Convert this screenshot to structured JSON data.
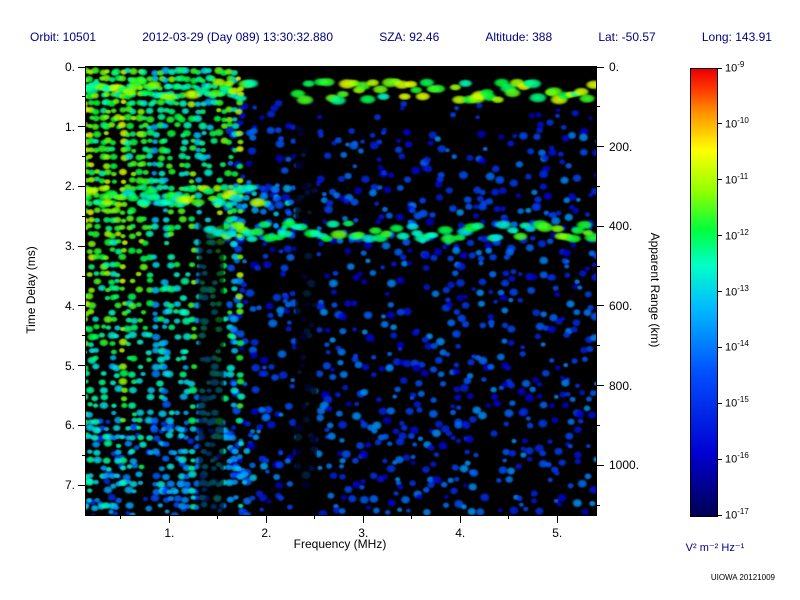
{
  "header": {
    "segments": [
      "Orbit: 10501",
      "2012-03-29 (Day 089) 13:30:32.880",
      "SZA: 92.46",
      "Altitude: 388",
      "Lat: -50.57",
      "Long: 143.91"
    ]
  },
  "axes": {
    "x": {
      "label": "Frequency (MHz)",
      "min": 0.14,
      "max": 5.4,
      "major_ticks": [
        1,
        2,
        3,
        4,
        5
      ],
      "tick_labels": [
        "1.",
        "2.",
        "3.",
        "4.",
        "5."
      ],
      "minor_step": 0.5
    },
    "y_left": {
      "label": "Time Delay (ms)",
      "min": 0,
      "max": 7.5,
      "major_ticks": [
        0,
        1,
        2,
        3,
        4,
        5,
        6,
        7
      ],
      "tick_labels": [
        "0.",
        "1.",
        "2.",
        "3.",
        "4.",
        "5.",
        "6.",
        "7."
      ],
      "minor_step": 0.5
    },
    "y_right": {
      "label": "Apparent Range (km)",
      "km_per_ms": 150,
      "ticks_km": [
        0,
        200,
        400,
        600,
        800,
        1000
      ],
      "tick_labels": [
        "0.",
        "200.",
        "400.",
        "600.",
        "800.",
        "1000."
      ],
      "minor_step_km": 100
    }
  },
  "colorbar": {
    "tick_exponents": [
      "-9",
      "-10",
      "-11",
      "-12",
      "-13",
      "-14",
      "-15",
      "-16",
      "-17"
    ],
    "units": "V² m⁻² Hz⁻¹"
  },
  "watermark": "UIOWA 20121009",
  "chart_data": {
    "type": "heatmap",
    "title": "MARSIS-style radar sounder ionogram spectrogram",
    "xlabel": "Frequency (MHz)",
    "ylabel_left": "Time Delay (ms)",
    "ylabel_right": "Apparent Range (km)",
    "xlim": [
      0.14,
      5.4
    ],
    "ylim_ms": [
      0,
      7.5
    ],
    "range_km_per_ms": 150,
    "colorbar_exponent_range": [
      -17,
      -9
    ],
    "background": "black",
    "features": [
      {
        "type": "speckle",
        "name": "diffuse-noise-main",
        "x": [
          1.62,
          5.4
        ],
        "y": [
          1.05,
          7.45
        ],
        "density": 0.3,
        "intensity": [
          0.12,
          0.42
        ],
        "radius": [
          2.5,
          5.0
        ]
      },
      {
        "type": "speckle",
        "name": "diffuse-noise-upper-mid",
        "x": [
          1.62,
          2.55
        ],
        "y": [
          0.55,
          1.05
        ],
        "density": 0.25,
        "intensity": [
          0.12,
          0.38
        ],
        "radius": [
          2.5,
          4.5
        ]
      },
      {
        "type": "speckle",
        "name": "sparse-top-right",
        "x": [
          2.55,
          5.4
        ],
        "y": [
          0.6,
          1.05
        ],
        "density": 0.08,
        "intensity": [
          0.1,
          0.3
        ],
        "radius": [
          2.5,
          4.0
        ]
      },
      {
        "type": "speckle",
        "name": "cusp-halo-above-surface-echo",
        "x": [
          1.45,
          2.35
        ],
        "y": [
          1.95,
          2.8
        ],
        "density": 0.5,
        "intensity": [
          0.28,
          0.55
        ],
        "radius": [
          3.0,
          5.0
        ]
      },
      {
        "type": "speckle",
        "name": "bottom-left-cyan-noise",
        "x": [
          0.14,
          2.0
        ],
        "y": [
          5.9,
          7.45
        ],
        "density": 0.38,
        "intensity": [
          0.22,
          0.5
        ],
        "radius": [
          2.5,
          4.5
        ]
      },
      {
        "type": "vstripes",
        "name": "plasma-harmonic-vertical-stripes",
        "x": [
          0.14,
          1.78
        ],
        "y": [
          0.08,
          7.45
        ],
        "spacing": 0.055,
        "base_intensity": [
          0.48,
          0.7
        ]
      },
      {
        "type": "void",
        "name": "dark-gap-in-stripes",
        "x": [
          1.3,
          1.56
        ],
        "y": [
          2.6,
          7.5
        ],
        "alpha": 0.6
      },
      {
        "type": "void",
        "name": "dark-frequency-column",
        "x": [
          2.3,
          2.52
        ],
        "y": [
          0.55,
          7.5
        ],
        "alpha": 0.75
      },
      {
        "type": "hband",
        "name": "ionospheric-echo-low-freq",
        "y": 2.15,
        "x": [
          0.14,
          1.95
        ],
        "thickness_ms": 0.14,
        "intensity": [
          0.52,
          0.78
        ],
        "gaps": []
      },
      {
        "type": "hband",
        "name": "surface-reflection-trace",
        "y": 2.75,
        "x": [
          1.42,
          5.4
        ],
        "thickness_ms": 0.13,
        "intensity": [
          0.5,
          0.72
        ],
        "gaps": []
      },
      {
        "type": "hband",
        "name": "near-range-band-top",
        "y": 0.4,
        "x": [
          0.14,
          5.4
        ],
        "thickness_ms": 0.16,
        "intensity": [
          0.55,
          0.8
        ],
        "gaps": [
          [
            1.85,
            2.3
          ]
        ]
      }
    ]
  }
}
